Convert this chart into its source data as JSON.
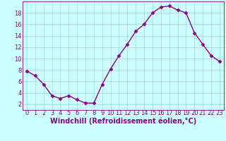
{
  "x": [
    0,
    1,
    2,
    3,
    4,
    5,
    6,
    7,
    8,
    9,
    10,
    11,
    12,
    13,
    14,
    15,
    16,
    17,
    18,
    19,
    20,
    21,
    22,
    23
  ],
  "y": [
    7.8,
    7.0,
    5.5,
    3.5,
    3.0,
    3.5,
    2.8,
    2.2,
    2.2,
    5.5,
    8.2,
    10.5,
    12.5,
    14.8,
    16.0,
    18.0,
    19.0,
    19.2,
    18.5,
    18.0,
    14.5,
    12.5,
    10.5,
    9.5
  ],
  "line_color": "#880088",
  "marker": "D",
  "marker_size": 2.5,
  "bg_color": "#ccffff",
  "grid_color": "#aadddd",
  "xlabel": "Windchill (Refroidissement éolien,°C)",
  "xlim": [
    -0.5,
    23.5
  ],
  "ylim": [
    1,
    20
  ],
  "yticks": [
    2,
    4,
    6,
    8,
    10,
    12,
    14,
    16,
    18
  ],
  "xticks": [
    0,
    1,
    2,
    3,
    4,
    5,
    6,
    7,
    8,
    9,
    10,
    11,
    12,
    13,
    14,
    15,
    16,
    17,
    18,
    19,
    20,
    21,
    22,
    23
  ],
  "tick_color": "#880088",
  "label_color": "#880088",
  "font_size": 6,
  "xlabel_font_size": 7,
  "line_width": 1.0
}
